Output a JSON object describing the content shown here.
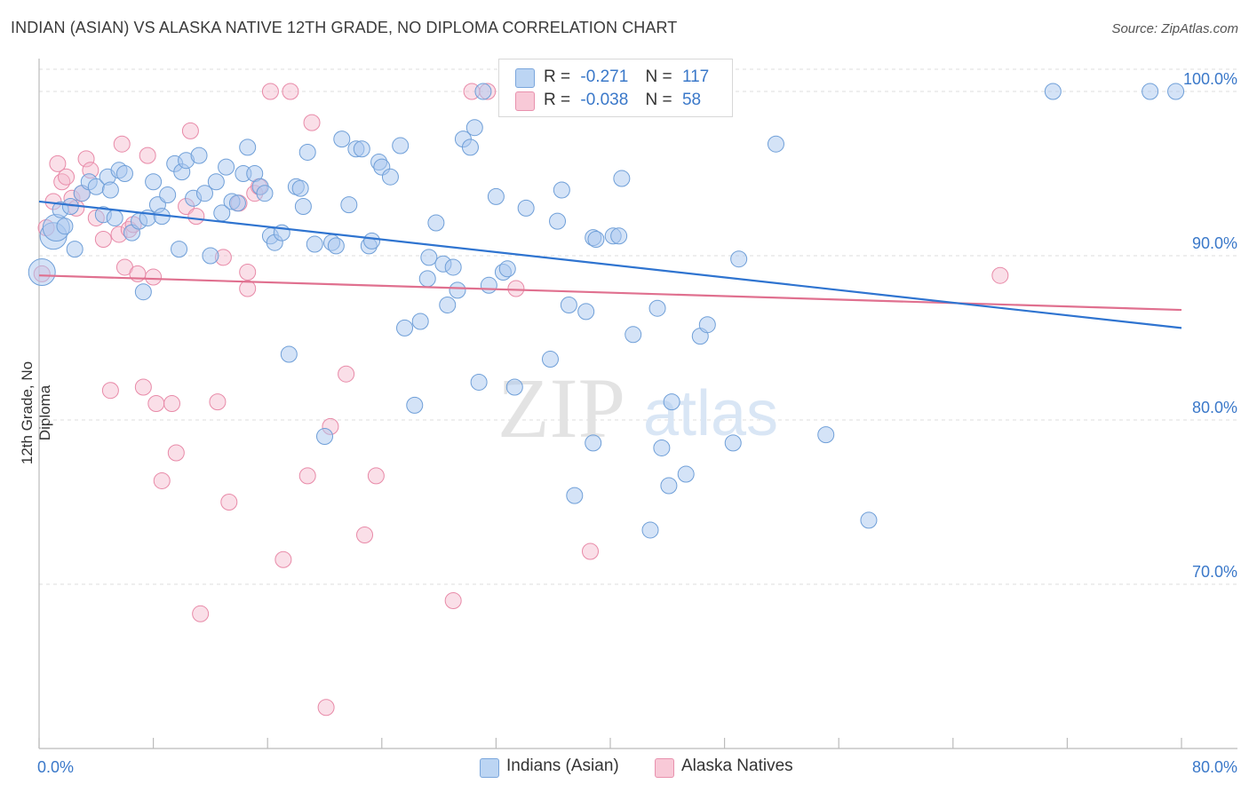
{
  "title": "INDIAN (ASIAN) VS ALASKA NATIVE 12TH GRADE, NO DIPLOMA CORRELATION CHART",
  "source": "Source: ZipAtlas.com",
  "watermark": {
    "zip": "ZIP",
    "atlas": "atlas"
  },
  "legend": {
    "r_label": "R =",
    "n_label": "N =",
    "series": [
      {
        "r": "-0.271",
        "n": "117"
      },
      {
        "r": "-0.038",
        "n": "58"
      }
    ]
  },
  "bottom_legend": [
    "Indians (Asian)",
    "Alaska Natives"
  ],
  "colors": {
    "blue_fill": "#a9c8ef",
    "blue_stroke": "#6f9fd8",
    "blue_line": "#2f74d0",
    "pink_fill": "#f5b8cb",
    "pink_stroke": "#e88aa8",
    "pink_line": "#e0708f",
    "tick_text": "#3a78c9"
  },
  "chart_data": {
    "type": "scatter",
    "title": "INDIAN (ASIAN) VS ALASKA NATIVE 12TH GRADE, NO DIPLOMA CORRELATION CHART",
    "xlabel": "",
    "ylabel": "12th Grade, No Diploma",
    "xlim": [
      0,
      80
    ],
    "ylim": [
      60,
      102
    ],
    "x_tick_labels": [
      "0.0%",
      "80.0%"
    ],
    "y_ticks": [
      70,
      80,
      90,
      100
    ],
    "y_tick_labels": [
      "70.0%",
      "80.0%",
      "90.0%",
      "100.0%"
    ],
    "grid": "horizontal dashed",
    "legend_position": "top-center",
    "series": [
      {
        "name": "Indians (Asian)",
        "r": -0.271,
        "n": 117,
        "trend": {
          "x": [
            0,
            80
          ],
          "y": [
            93.3,
            85.6
          ]
        },
        "points": [
          [
            0.2,
            89
          ],
          [
            1,
            91.2
          ],
          [
            1.2,
            91.7
          ],
          [
            1.5,
            92.8
          ],
          [
            1.8,
            91.8
          ],
          [
            2.2,
            93
          ],
          [
            2.5,
            90.4
          ],
          [
            3,
            93.8
          ],
          [
            3.5,
            94.5
          ],
          [
            4,
            94.2
          ],
          [
            4.5,
            92.5
          ],
          [
            4.8,
            94.8
          ],
          [
            5,
            94
          ],
          [
            5.3,
            92.3
          ],
          [
            5.6,
            95.2
          ],
          [
            6,
            95
          ],
          [
            6.5,
            91.4
          ],
          [
            7,
            92.1
          ],
          [
            7.3,
            87.8
          ],
          [
            7.6,
            92.3
          ],
          [
            8,
            94.5
          ],
          [
            8.3,
            93.1
          ],
          [
            8.6,
            92.4
          ],
          [
            9,
            93.7
          ],
          [
            9.5,
            95.6
          ],
          [
            9.8,
            90.4
          ],
          [
            10,
            95.1
          ],
          [
            10.3,
            95.8
          ],
          [
            10.8,
            93.5
          ],
          [
            11.2,
            96.1
          ],
          [
            11.6,
            93.8
          ],
          [
            12,
            90
          ],
          [
            12.4,
            94.5
          ],
          [
            12.8,
            92.6
          ],
          [
            13.1,
            95.4
          ],
          [
            13.5,
            93.3
          ],
          [
            13.9,
            93.2
          ],
          [
            14.3,
            95
          ],
          [
            14.6,
            96.6
          ],
          [
            15.1,
            95
          ],
          [
            15.5,
            94.2
          ],
          [
            15.8,
            93.8
          ],
          [
            16.2,
            91.2
          ],
          [
            16.5,
            90.8
          ],
          [
            17,
            91.4
          ],
          [
            17.5,
            84
          ],
          [
            18,
            94.2
          ],
          [
            18.3,
            94.1
          ],
          [
            18.5,
            93
          ],
          [
            18.8,
            96.3
          ],
          [
            19.3,
            90.7
          ],
          [
            20,
            79
          ],
          [
            20.5,
            90.8
          ],
          [
            20.8,
            90.6
          ],
          [
            21.2,
            97.1
          ],
          [
            21.7,
            93.1
          ],
          [
            22.2,
            96.5
          ],
          [
            22.6,
            96.5
          ],
          [
            23.1,
            90.6
          ],
          [
            23.3,
            90.9
          ],
          [
            23.8,
            95.7
          ],
          [
            24,
            95.4
          ],
          [
            24.6,
            94.8
          ],
          [
            25.3,
            96.7
          ],
          [
            25.6,
            85.6
          ],
          [
            26.3,
            80.9
          ],
          [
            26.7,
            86
          ],
          [
            27.2,
            88.6
          ],
          [
            27.3,
            89.9
          ],
          [
            27.8,
            92
          ],
          [
            28.3,
            89.5
          ],
          [
            28.6,
            87
          ],
          [
            29,
            89.3
          ],
          [
            29.3,
            87.9
          ],
          [
            29.7,
            97.1
          ],
          [
            30.2,
            96.6
          ],
          [
            30.5,
            97.8
          ],
          [
            30.8,
            82.3
          ],
          [
            31.1,
            100
          ],
          [
            31.5,
            88.2
          ],
          [
            32,
            93.6
          ],
          [
            32.5,
            89
          ],
          [
            32.8,
            89.2
          ],
          [
            33.3,
            82
          ],
          [
            34.1,
            92.9
          ],
          [
            35.8,
            83.7
          ],
          [
            36.3,
            92.1
          ],
          [
            36.6,
            94
          ],
          [
            37.1,
            87
          ],
          [
            37.5,
            75.4
          ],
          [
            38.3,
            86.6
          ],
          [
            38.8,
            78.6
          ],
          [
            38.8,
            91.1
          ],
          [
            39,
            91
          ],
          [
            40.2,
            91.2
          ],
          [
            40.6,
            91.2
          ],
          [
            40.8,
            94.7
          ],
          [
            41.6,
            85.2
          ],
          [
            42.8,
            73.3
          ],
          [
            43.3,
            86.8
          ],
          [
            43.6,
            78.3
          ],
          [
            44.1,
            76
          ],
          [
            44.3,
            81.1
          ],
          [
            45.3,
            76.7
          ],
          [
            46.3,
            85.1
          ],
          [
            46.8,
            85.8
          ],
          [
            48.6,
            78.6
          ],
          [
            49,
            89.8
          ],
          [
            51.6,
            96.8
          ],
          [
            55.1,
            79.1
          ],
          [
            58.1,
            73.9
          ],
          [
            71,
            100
          ],
          [
            77.8,
            100
          ],
          [
            79.6,
            100
          ]
        ]
      },
      {
        "name": "Alaska Natives",
        "r": -0.038,
        "n": 58,
        "trend": {
          "x": [
            0,
            80
          ],
          "y": [
            88.8,
            86.7
          ]
        },
        "points": [
          [
            0.2,
            88.9
          ],
          [
            0.5,
            91.7
          ],
          [
            1,
            93.3
          ],
          [
            1.3,
            95.6
          ],
          [
            1.6,
            94.5
          ],
          [
            1.9,
            94.8
          ],
          [
            2.3,
            93.5
          ],
          [
            2.6,
            92.9
          ],
          [
            3,
            93.8
          ],
          [
            3.3,
            95.9
          ],
          [
            3.6,
            95.2
          ],
          [
            4,
            92.3
          ],
          [
            4.5,
            91
          ],
          [
            5,
            81.8
          ],
          [
            5.6,
            91.3
          ],
          [
            5.8,
            96.8
          ],
          [
            6,
            89.3
          ],
          [
            6.3,
            91.6
          ],
          [
            6.6,
            91.9
          ],
          [
            6.9,
            88.9
          ],
          [
            7.3,
            82
          ],
          [
            7.6,
            96.1
          ],
          [
            8,
            88.7
          ],
          [
            8.2,
            81
          ],
          [
            8.6,
            76.3
          ],
          [
            9.3,
            81
          ],
          [
            9.6,
            78
          ],
          [
            10.3,
            93
          ],
          [
            10.6,
            97.6
          ],
          [
            11,
            92.4
          ],
          [
            11.3,
            68.2
          ],
          [
            12.5,
            81.1
          ],
          [
            12.9,
            89.9
          ],
          [
            13.3,
            75
          ],
          [
            14,
            93.2
          ],
          [
            14.6,
            89
          ],
          [
            14.6,
            88
          ],
          [
            15.1,
            93.8
          ],
          [
            15.4,
            94.2
          ],
          [
            16.2,
            100
          ],
          [
            17.1,
            71.5
          ],
          [
            17.6,
            100
          ],
          [
            18.8,
            76.6
          ],
          [
            19.1,
            98.1
          ],
          [
            20.1,
            62.5
          ],
          [
            20.4,
            79.6
          ],
          [
            21.5,
            82.8
          ],
          [
            22.8,
            73
          ],
          [
            23.6,
            76.6
          ],
          [
            29,
            69
          ],
          [
            30.3,
            100
          ],
          [
            31.4,
            100
          ],
          [
            33.4,
            88
          ],
          [
            38.6,
            72
          ],
          [
            44,
            100
          ],
          [
            46.6,
            100
          ],
          [
            67.3,
            88.8
          ]
        ]
      }
    ]
  }
}
